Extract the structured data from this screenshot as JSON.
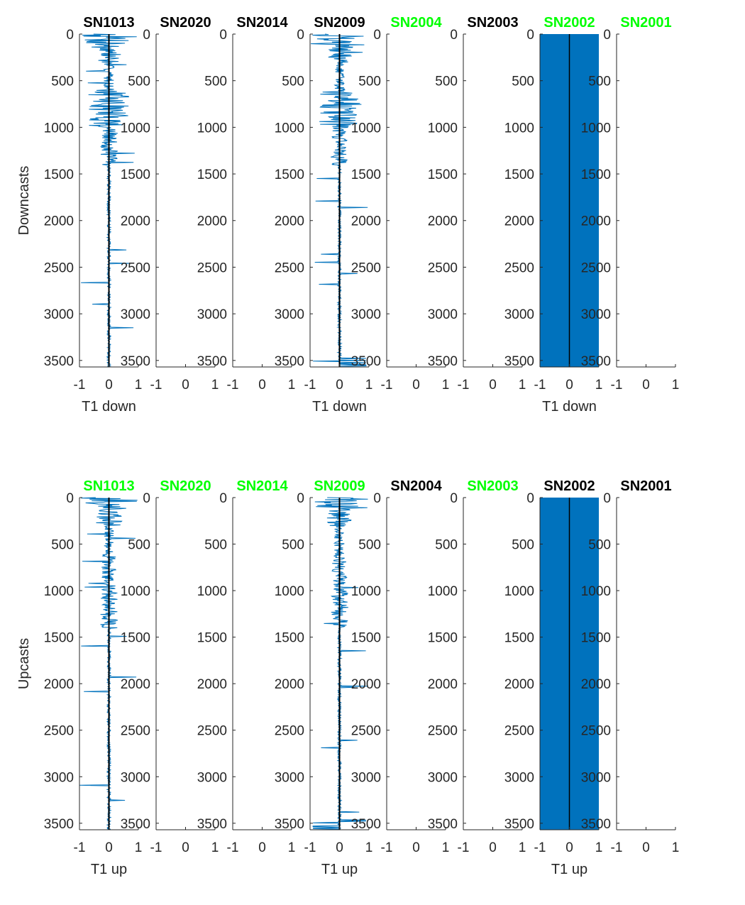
{
  "figure": {
    "rows": [
      {
        "ylabel": "Downcasts",
        "xlabel": "T1 down",
        "titles": [
          {
            "text": "SN1013",
            "color": "#000000"
          },
          {
            "text": "SN2020",
            "color": "#000000"
          },
          {
            "text": "SN2014",
            "color": "#000000"
          },
          {
            "text": "SN2009",
            "color": "#000000"
          },
          {
            "text": "SN2004",
            "color": "#00ff00"
          },
          {
            "text": "SN2003",
            "color": "#000000"
          },
          {
            "text": "SN2002",
            "color": "#00ff00"
          },
          {
            "text": "SN2001",
            "color": "#00ff00"
          }
        ]
      },
      {
        "ylabel": "Upcasts",
        "xlabel": "T1 up",
        "titles": [
          {
            "text": "SN1013",
            "color": "#00ff00"
          },
          {
            "text": "SN2020",
            "color": "#00ff00"
          },
          {
            "text": "SN2014",
            "color": "#00ff00"
          },
          {
            "text": "SN2009",
            "color": "#00ff00"
          },
          {
            "text": "SN2004",
            "color": "#000000"
          },
          {
            "text": "SN2003",
            "color": "#00ff00"
          },
          {
            "text": "SN2002",
            "color": "#000000"
          },
          {
            "text": "SN2001",
            "color": "#000000"
          }
        ]
      }
    ]
  },
  "chart_data": {
    "type": "line",
    "layout": "2 rows x 8 columns of depth profiles",
    "x_ticks": [
      -1,
      0,
      1
    ],
    "xlim": [
      -1,
      1
    ],
    "y_ticks": [
      0,
      500,
      1000,
      1500,
      2000,
      2500,
      3000,
      3500
    ],
    "ylim": [
      0,
      3570
    ],
    "y_direction": "reversed",
    "x_label_shown_on_columns": [
      0,
      3,
      6
    ],
    "panels_with_data": {
      "noisy_profile": [
        0,
        3
      ],
      "saturated_fill": [
        6
      ]
    },
    "series_color": "#0072bd",
    "mean_line_color": "#000000",
    "description_values": {
      "SN1013": {
        "near_surface_amplitude": 1.0,
        "mid_depth_amplitude": 0.6,
        "deep_amplitude": 0.05
      },
      "SN2009": {
        "near_surface_amplitude": 1.0,
        "mid_depth_amplitude": 0.5,
        "deep_amplitude": 0.1
      },
      "SN2002": {
        "fill_x_range": [
          -1,
          1
        ],
        "fill_depth_range": [
          0,
          3570
        ]
      }
    }
  }
}
